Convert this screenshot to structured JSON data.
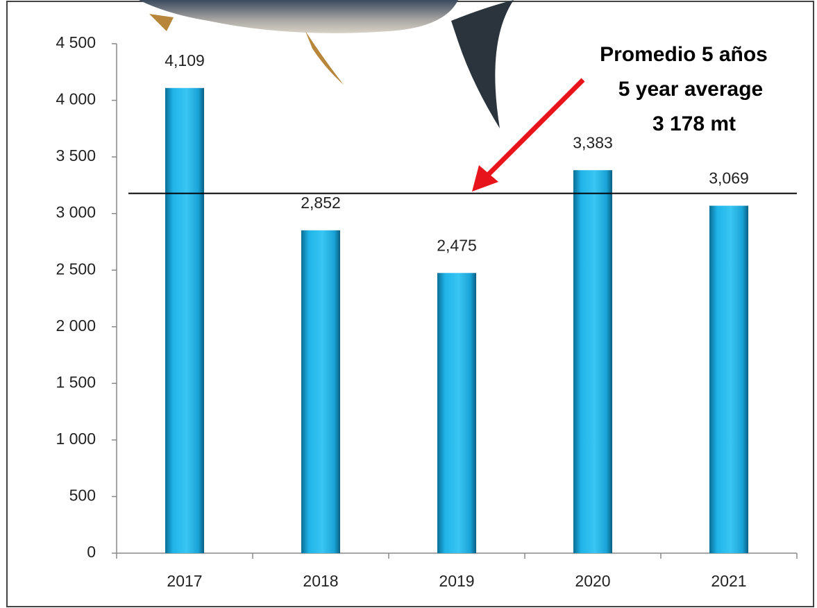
{
  "chart_data": {
    "type": "bar",
    "categories": [
      "2017",
      "2018",
      "2019",
      "2020",
      "2021"
    ],
    "values": [
      4109,
      2852,
      2475,
      3383,
      3069
    ],
    "value_labels": [
      "4,109",
      "2,852",
      "2,475",
      "3,383",
      "3,069"
    ],
    "color": "#1fb4e8",
    "ylim": [
      0,
      4500
    ],
    "yticks": [
      0,
      500,
      {
        "value": 1000,
        "label": "1 000"
      },
      {
        "value": 1500,
        "label": "1 500"
      },
      {
        "value": 2000,
        "label": "2 000"
      },
      {
        "value": 2500,
        "label": "2 500"
      },
      {
        "value": 3000,
        "label": "3 000"
      },
      {
        "value": 3500,
        "label": "3 500"
      },
      {
        "value": 4000,
        "label": "4 000"
      },
      {
        "value": 4500,
        "label": "4 500"
      }
    ],
    "average": 3178,
    "annotations": [
      "Promedio 5 años",
      "5 year average",
      "3 178 mt"
    ]
  }
}
